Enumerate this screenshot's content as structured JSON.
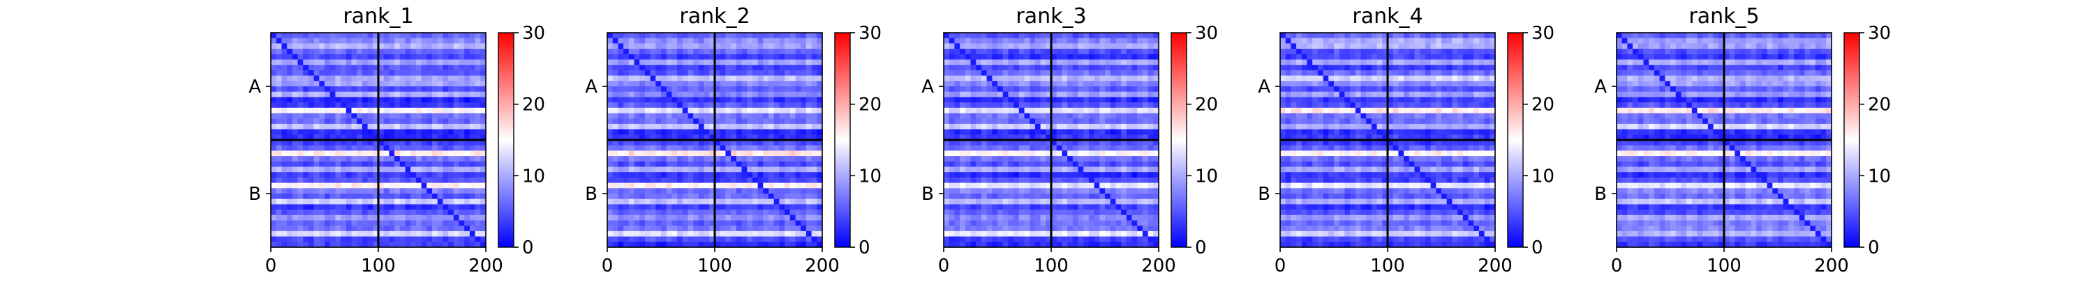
{
  "chart_data": [
    {
      "type": "heatmap",
      "title": "rank_1",
      "x_ticks": [
        0,
        100,
        200
      ],
      "xlim": [
        0,
        200
      ],
      "y_ticks": [
        "A",
        "B"
      ],
      "chain_boundary": 100,
      "colorbar": {
        "min": 0,
        "max": 30,
        "ticks": [
          0,
          10,
          20,
          30
        ],
        "colormap": "bwr"
      },
      "typical_value": 4,
      "bright_row_value": 14
    },
    {
      "type": "heatmap",
      "title": "rank_2",
      "x_ticks": [
        0,
        100,
        200
      ],
      "xlim": [
        0,
        200
      ],
      "y_ticks": [
        "A",
        "B"
      ],
      "chain_boundary": 100,
      "colorbar": {
        "min": 0,
        "max": 30,
        "ticks": [
          0,
          10,
          20,
          30
        ],
        "colormap": "bwr"
      },
      "typical_value": 4,
      "bright_row_value": 14
    },
    {
      "type": "heatmap",
      "title": "rank_3",
      "x_ticks": [
        0,
        100,
        200
      ],
      "xlim": [
        0,
        200
      ],
      "y_ticks": [
        "A",
        "B"
      ],
      "chain_boundary": 100,
      "colorbar": {
        "min": 0,
        "max": 30,
        "ticks": [
          0,
          10,
          20,
          30
        ],
        "colormap": "bwr"
      },
      "typical_value": 4,
      "bright_row_value": 14
    },
    {
      "type": "heatmap",
      "title": "rank_4",
      "x_ticks": [
        0,
        100,
        200
      ],
      "xlim": [
        0,
        200
      ],
      "y_ticks": [
        "A",
        "B"
      ],
      "chain_boundary": 100,
      "colorbar": {
        "min": 0,
        "max": 30,
        "ticks": [
          0,
          10,
          20,
          30
        ],
        "colormap": "bwr"
      },
      "typical_value": 4,
      "bright_row_value": 14
    },
    {
      "type": "heatmap",
      "title": "rank_5",
      "x_ticks": [
        0,
        100,
        200
      ],
      "xlim": [
        0,
        200
      ],
      "y_ticks": [
        "A",
        "B"
      ],
      "chain_boundary": 100,
      "colorbar": {
        "min": 0,
        "max": 30,
        "ticks": [
          0,
          10,
          20,
          30
        ],
        "colormap": "bwr"
      },
      "typical_value": 4,
      "bright_row_value": 14
    }
  ],
  "colors": {
    "low": "#0000ff",
    "mid": "#ffffff",
    "high": "#ff0000",
    "frame": "#000000"
  }
}
